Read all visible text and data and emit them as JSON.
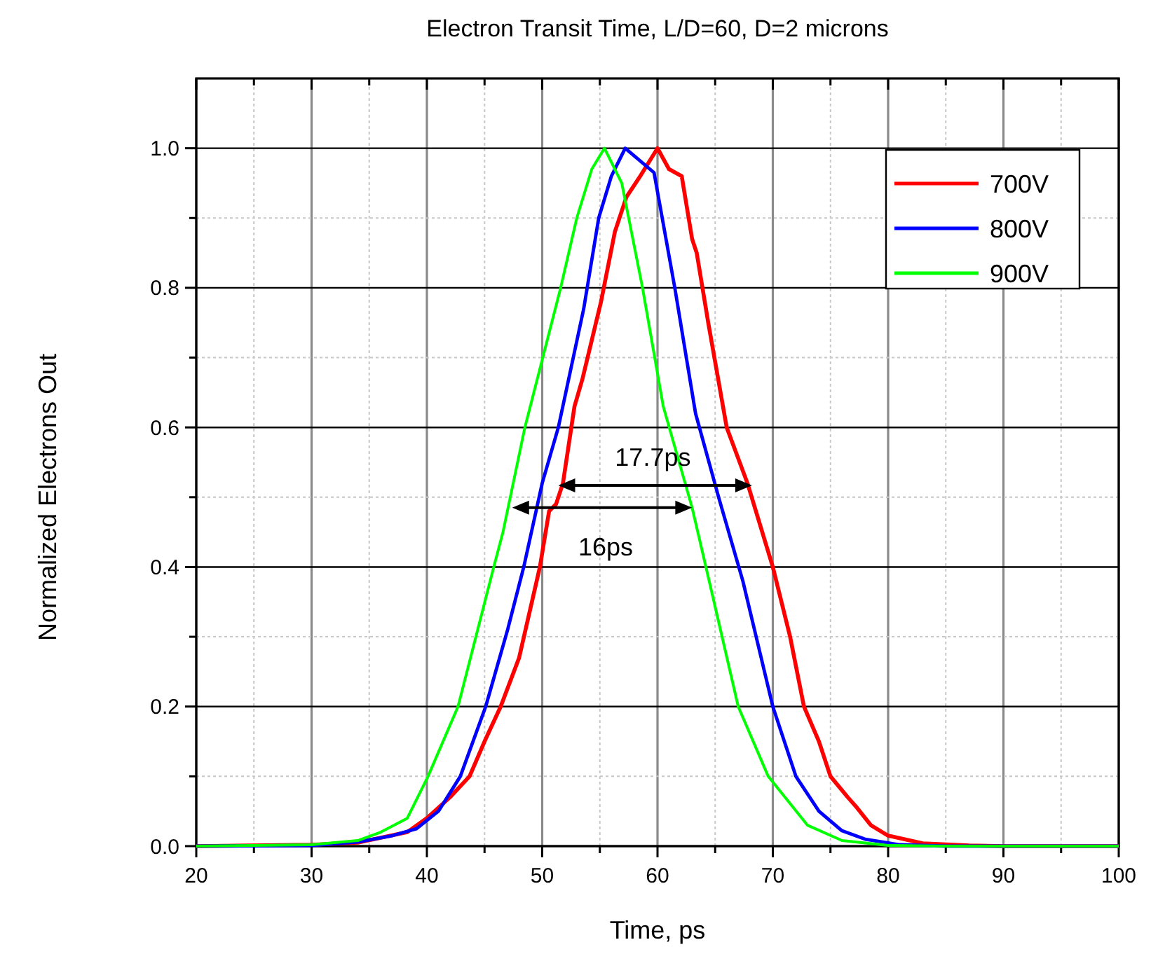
{
  "chart_data": {
    "type": "line",
    "title": "Electron Transit Time, L/D=60, D=2 microns",
    "xlabel": "Time, ps",
    "ylabel": "Normalized Electrons Out",
    "xlim": [
      20,
      100
    ],
    "ylim": [
      0,
      1.1
    ],
    "xticks": [
      20,
      {
        "value": 25,
        "label": null
      },
      30,
      {
        "value": 35,
        "label": null
      },
      40,
      {
        "value": 45,
        "label": null
      },
      50,
      {
        "value": 55,
        "label": null
      },
      60,
      {
        "value": 65,
        "label": null
      },
      70,
      {
        "value": 75,
        "label": null
      },
      80,
      {
        "value": 85,
        "label": null
      },
      90,
      {
        "value": 95,
        "label": null
      },
      100
    ],
    "yticks": [
      {
        "value": 0,
        "label": "0.0"
      },
      {
        "value": 0.1,
        "label": null
      },
      {
        "value": 0.2,
        "label": "0.2"
      },
      {
        "value": 0.3,
        "label": null
      },
      {
        "value": 0.4,
        "label": "0.4"
      },
      {
        "value": 0.5,
        "label": null
      },
      {
        "value": 0.6,
        "label": "0.6"
      },
      {
        "value": 0.7,
        "label": null
      },
      {
        "value": 0.8,
        "label": "0.8"
      },
      {
        "value": 0.9,
        "label": null
      },
      {
        "value": 1,
        "label": "1.0"
      }
    ],
    "grid": true,
    "legend": "top right",
    "marker": "none",
    "line_style": "solid",
    "series": [
      {
        "name": "700V",
        "color": "#ff0000",
        "x": [
          20,
          30,
          34,
          36,
          38.3,
          40,
          42,
          43.7,
          45,
          46.4,
          48,
          49.8,
          50.6,
          51.2,
          51.8,
          52.8,
          53.5,
          55.1,
          56.3,
          57.3,
          58.5,
          60,
          61,
          62.1,
          63,
          63.4,
          64.4,
          66,
          67.8,
          70,
          71.5,
          72.7,
          74,
          75,
          76.5,
          77.3,
          78.5,
          80,
          83,
          87,
          90,
          100
        ],
        "values": [
          0,
          0.002,
          0.005,
          0.012,
          0.02,
          0.04,
          0.07,
          0.1,
          0.15,
          0.2,
          0.27,
          0.4,
          0.48,
          0.49,
          0.52,
          0.63,
          0.67,
          0.78,
          0.88,
          0.93,
          0.96,
          1,
          0.97,
          0.96,
          0.87,
          0.85,
          0.75,
          0.6,
          0.52,
          0.4,
          0.3,
          0.2,
          0.15,
          0.1,
          0.07,
          0.055,
          0.03,
          0.015,
          0.004,
          0.001,
          0,
          0
        ]
      },
      {
        "name": "800V",
        "color": "#0000ff",
        "x": [
          20,
          30,
          34,
          37,
          39.1,
          41,
          42.9,
          45.1,
          47,
          48.4,
          50,
          51.4,
          53.6,
          54.9,
          56,
          57.2,
          59.7,
          61.5,
          63.3,
          65.3,
          67.4,
          70,
          72,
          74,
          76,
          78,
          81,
          85,
          100
        ],
        "values": [
          0,
          0.001,
          0.006,
          0.015,
          0.025,
          0.05,
          0.1,
          0.2,
          0.31,
          0.4,
          0.52,
          0.6,
          0.77,
          0.9,
          0.96,
          1,
          0.965,
          0.8,
          0.62,
          0.5,
          0.38,
          0.2,
          0.1,
          0.05,
          0.022,
          0.01,
          0.002,
          0,
          0
        ]
      },
      {
        "name": "900V",
        "color": "#00ff00",
        "x": [
          20,
          30,
          34,
          36,
          38.3,
          40.1,
          42.7,
          45.8,
          46.6,
          48.5,
          51.6,
          53,
          54.3,
          55.4,
          56.9,
          58.7,
          60.5,
          63,
          64.2,
          67,
          69.6,
          73,
          76,
          80,
          85,
          100
        ],
        "values": [
          0,
          0.002,
          0.008,
          0.02,
          0.04,
          0.1,
          0.2,
          0.4,
          0.45,
          0.6,
          0.8,
          0.9,
          0.97,
          1,
          0.95,
          0.8,
          0.63,
          0.485,
          0.4,
          0.2,
          0.1,
          0.03,
          0.008,
          0.001,
          0,
          0
        ]
      }
    ],
    "annotations": [
      "17.7ps",
      "16ps"
    ]
  }
}
